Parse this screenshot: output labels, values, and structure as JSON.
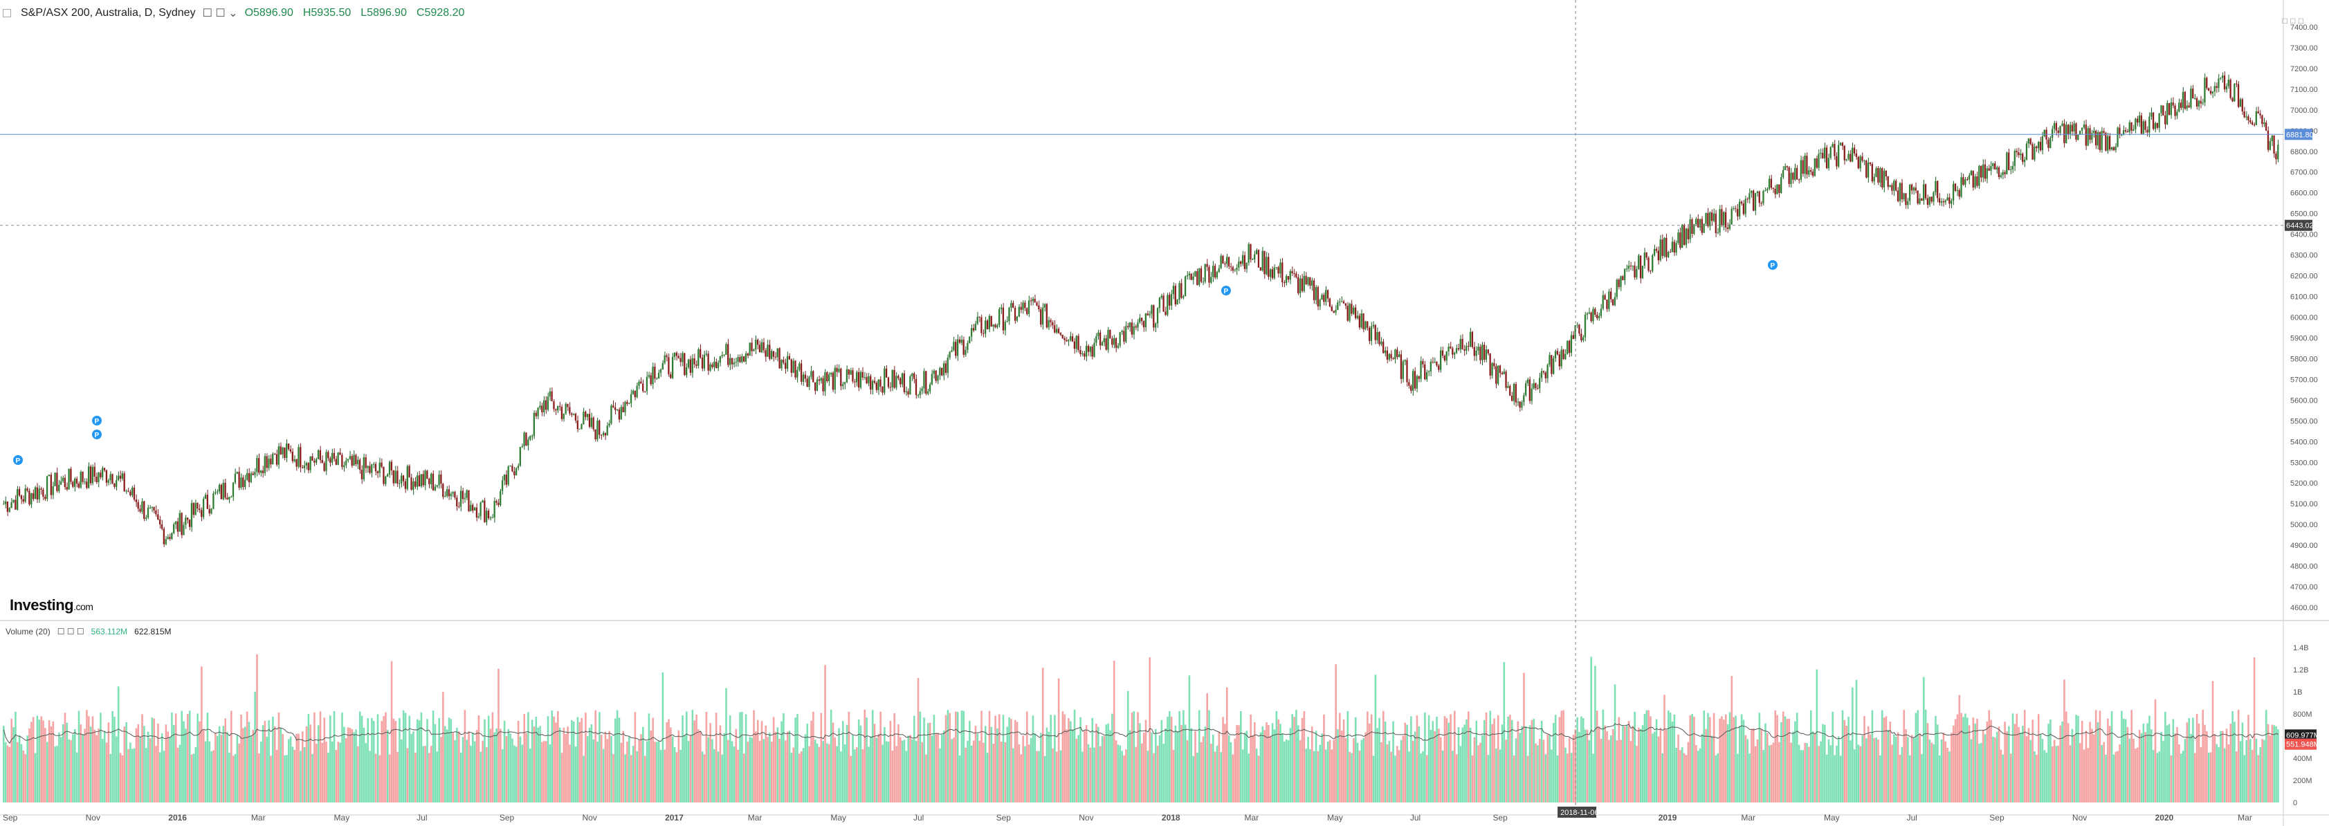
{
  "header": {
    "symbol": "S&P/ASX 200, Australia, D, Sydney",
    "open": "O5896.90",
    "high": "H5935.50",
    "low": "L5896.90",
    "close": "C5928.20"
  },
  "volume_header": {
    "label": "Volume (20)",
    "value1": "563.112M",
    "value2": "622.815M"
  },
  "logo": {
    "main": "Investing",
    "suffix": ".com"
  },
  "colors": {
    "up": "#26a69a",
    "down": "#ef5350",
    "candle_body_up": "#2e7d32",
    "candle_body_down": "#8b1a1a",
    "vol_up": "#7ee0b5",
    "vol_down": "#f5a3a3",
    "hline": "#5b8dd9",
    "crosshair": "#888888"
  },
  "chart_data": [
    {
      "type": "candlestick",
      "title": "S&P/ASX 200, Australia, D, Sydney",
      "x": [
        "Sep",
        "Nov",
        "2016",
        "Mar",
        "May",
        "Jul",
        "Sep",
        "Nov",
        "2017",
        "Mar",
        "May",
        "Jul",
        "Sep",
        "Nov",
        "2018",
        "Mar",
        "May",
        "Jul",
        "Sep",
        "2018-11-06",
        "2019",
        "Mar",
        "May",
        "Jul",
        "Sep",
        "Nov",
        "2020",
        "Mar"
      ],
      "x_months_index": [
        0,
        2,
        4,
        6,
        8,
        10,
        12,
        14,
        16,
        18,
        20,
        22,
        24,
        26,
        28,
        30,
        32,
        34,
        36,
        38,
        40,
        42,
        44,
        46,
        48,
        50,
        52,
        54
      ],
      "closes_monthly": [
        5100,
        5200,
        5250,
        4950,
        5150,
        5350,
        5300,
        5250,
        5200,
        5050,
        5600,
        5450,
        5750,
        5800,
        5850,
        5700,
        5700,
        5680,
        5950,
        6050,
        5850,
        5950,
        6200,
        6300,
        6150,
        6000,
        5700,
        5900,
        5600,
        5900,
        6200,
        6400,
        6500,
        6700,
        6800,
        6600,
        6600,
        6750,
        6900,
        6850,
        7000,
        7150,
        6800
      ],
      "ylim": [
        4550,
        7450
      ],
      "yticks": [
        4600,
        4700,
        4800,
        4900,
        5000,
        5100,
        5200,
        5300,
        5400,
        5500,
        5600,
        5700,
        5800,
        5900,
        6000,
        6100,
        6200,
        6300,
        6400,
        6500,
        6600,
        6700,
        6800,
        6900,
        7000,
        7100,
        7200,
        7300,
        7400
      ],
      "hline_price": "6881.80",
      "crosshair_price": "6443.02",
      "crosshair_date": "2018-11-06",
      "grid": false
    },
    {
      "type": "bar",
      "title": "Volume (20)",
      "yticks": [
        "0",
        "200M",
        "400M",
        "600M",
        "800M",
        "1B",
        "1.2B",
        "1.4B"
      ],
      "ylim": [
        0,
        1500
      ],
      "value_labels": [
        "609.977M",
        "551.948M"
      ],
      "ma_period": 20
    }
  ],
  "markers": [
    "P",
    "P",
    "P",
    "P",
    "P"
  ]
}
